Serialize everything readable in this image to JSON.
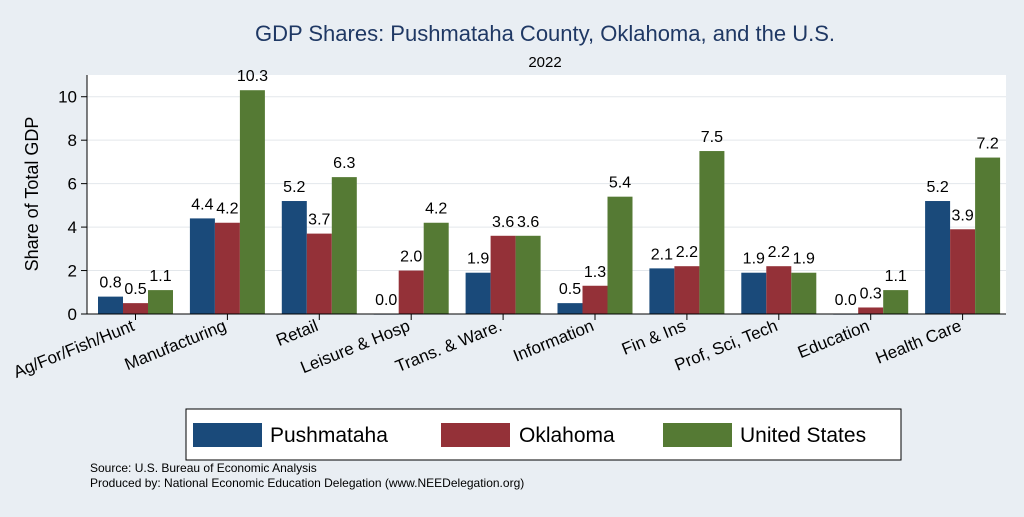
{
  "chart_data": {
    "type": "bar",
    "title": "GDP Shares: Pushmataha County, Oklahoma, and the U.S.",
    "subtitle": "2022",
    "xlabel": "",
    "ylabel": "Share of Total GDP",
    "ylim": [
      0,
      11
    ],
    "yticks": [
      0,
      2,
      4,
      6,
      8,
      10
    ],
    "grid": true,
    "legend_position": "bottom",
    "categories": [
      "Ag/For/Fish/Hunt",
      "Manufacturing",
      "Retail",
      "Leisure & Hosp",
      "Trans. & Ware.",
      "Information",
      "Fin & Ins",
      "Prof, Sci, Tech",
      "Education",
      "Health Care"
    ],
    "series": [
      {
        "name": "Pushmataha",
        "color": "#1a4a7a",
        "values": [
          0.8,
          4.4,
          5.2,
          0.0,
          1.9,
          0.5,
          2.1,
          1.9,
          0.0,
          5.2
        ],
        "labels": [
          "0.8",
          "4.4",
          "5.2",
          "0.0",
          "1.9",
          "0.5",
          "2.1",
          "1.9",
          "0.0",
          "5.2"
        ]
      },
      {
        "name": "Oklahoma",
        "color": "#943138",
        "values": [
          0.5,
          4.2,
          3.7,
          2.0,
          3.6,
          1.3,
          2.2,
          2.2,
          0.3,
          3.9
        ],
        "labels": [
          "0.5",
          "4.2",
          "3.7",
          "2.0",
          "3.6",
          "1.3",
          "2.2",
          "2.2",
          "0.3",
          "3.9"
        ]
      },
      {
        "name": "United States",
        "color": "#557a34",
        "values": [
          1.1,
          10.3,
          6.3,
          4.2,
          3.6,
          5.4,
          7.5,
          1.9,
          1.1,
          7.2
        ],
        "labels": [
          "1.1",
          "10.3",
          "6.3",
          "4.2",
          "3.6",
          "5.4",
          "7.5",
          "1.9",
          "1.1",
          "7.2"
        ]
      }
    ]
  },
  "footer": {
    "source": "Source: U.S. Bureau of Economic Analysis",
    "produced_by": "Produced by: National Economic Education Delegation (www.NEEDelegation.org)"
  }
}
